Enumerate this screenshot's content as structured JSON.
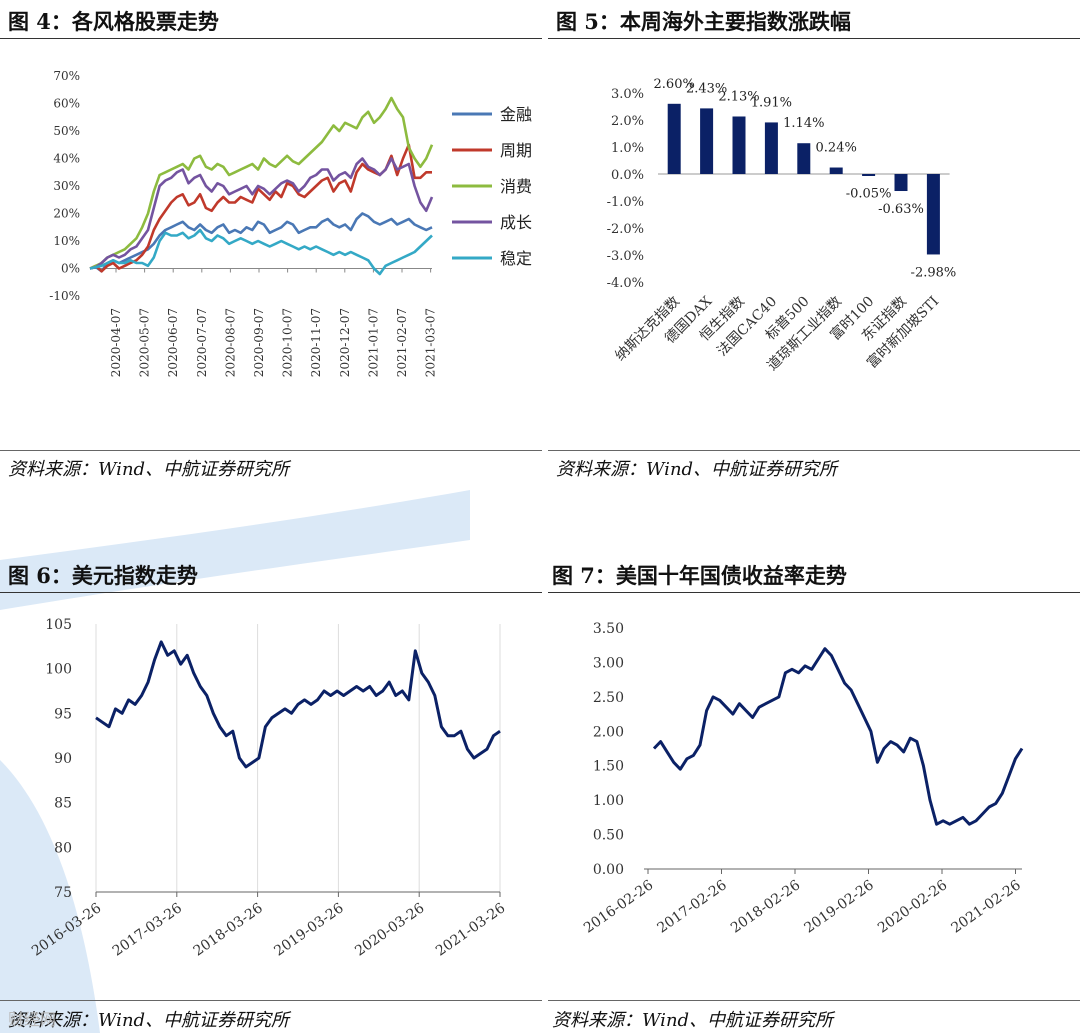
{
  "figures": {
    "fig4": {
      "title": "图 4：各风格股票走势",
      "source": "资料来源：Wind、中航证券研究所"
    },
    "fig5": {
      "title": "图 5：本周海外主要指数涨跌幅",
      "source": "资料来源：Wind、中航证券研究所"
    },
    "fig6": {
      "title": "图 6：美元指数走势",
      "source": "资料来源：Wind、中航证券研究所"
    },
    "fig7": {
      "title": "图 7：美国十年国债收益率走势",
      "source": "资料来源：Wind、中航证券研究所"
    }
  },
  "watermark": "财经网",
  "colors": {
    "navy": "#0b2166",
    "finance": "#4a78b5",
    "cycle": "#c0392b",
    "consumer": "#8dbb3f",
    "growth": "#7454a0",
    "stable": "#34a9c6",
    "swoosh": "#dbe9f7"
  },
  "chart_data": [
    {
      "id": "fig4",
      "type": "line",
      "title": "各风格股票走势",
      "x_ticks": [
        "2020-04-07",
        "2020-05-07",
        "2020-06-07",
        "2020-07-07",
        "2020-08-07",
        "2020-09-07",
        "2020-10-07",
        "2020-11-07",
        "2020-12-07",
        "2021-01-07",
        "2021-02-07",
        "2021-03-07"
      ],
      "y_ticks": [
        "70%",
        "60%",
        "50%",
        "40%",
        "30%",
        "20%",
        "10%",
        "0%",
        "-10%"
      ],
      "ylim": [
        -10,
        70
      ],
      "series": [
        {
          "name": "金融",
          "color_key": "finance",
          "values": [
            0,
            0.5,
            -1,
            2,
            3,
            2,
            3,
            4,
            5,
            6,
            7,
            9,
            12,
            14,
            15,
            16,
            17,
            15,
            14,
            16,
            14,
            13,
            15,
            16,
            13,
            14,
            13,
            15,
            14,
            17,
            16,
            13,
            14,
            15,
            17,
            16,
            13,
            14,
            15,
            15,
            17,
            18,
            16,
            15,
            16,
            14,
            18,
            20,
            19,
            17,
            16,
            17,
            18,
            16,
            17,
            18,
            16,
            15,
            14,
            15
          ]
        },
        {
          "name": "周期",
          "color_key": "cycle",
          "values": [
            0,
            1,
            -1,
            1,
            2,
            0,
            1,
            2,
            3,
            5,
            8,
            14,
            18,
            21,
            24,
            26,
            27,
            23,
            24,
            27,
            22,
            21,
            24,
            26,
            24,
            24,
            26,
            25,
            24,
            29,
            27,
            25,
            28,
            26,
            31,
            30,
            27,
            26,
            28,
            30,
            32,
            33,
            28,
            31,
            32,
            28,
            35,
            38,
            36,
            35,
            34,
            36,
            41,
            34,
            40,
            45,
            33,
            33,
            35,
            35
          ]
        },
        {
          "name": "消费",
          "color_key": "consumer",
          "values": [
            0,
            1,
            2,
            4,
            5,
            6,
            7,
            9,
            11,
            15,
            20,
            28,
            34,
            35,
            36,
            37,
            38,
            36,
            40,
            41,
            37,
            36,
            38,
            37,
            34,
            35,
            36,
            37,
            38,
            36,
            40,
            38,
            37,
            39,
            41,
            39,
            38,
            40,
            42,
            44,
            46,
            49,
            52,
            50,
            53,
            52,
            51,
            55,
            57,
            53,
            55,
            58,
            62,
            58,
            55,
            44,
            40,
            37,
            40,
            45
          ]
        },
        {
          "name": "成长",
          "color_key": "growth",
          "values": [
            0,
            0.5,
            2,
            4,
            5,
            4,
            5,
            7,
            8,
            11,
            14,
            22,
            30,
            32,
            33,
            35,
            36,
            31,
            33,
            34,
            30,
            28,
            31,
            30,
            27,
            28,
            29,
            30,
            27,
            30,
            29,
            27,
            29,
            31,
            32,
            31,
            28,
            30,
            33,
            34,
            36,
            36,
            32,
            34,
            35,
            33,
            38,
            40,
            37,
            36,
            34,
            36,
            40,
            36,
            37,
            38,
            30,
            24,
            21,
            26
          ]
        },
        {
          "name": "稳定",
          "color_key": "stable",
          "values": [
            0,
            0.5,
            1,
            2,
            3,
            2,
            2,
            3,
            2,
            2,
            1,
            4,
            10,
            13,
            12,
            12,
            13,
            11,
            12,
            14,
            11,
            10,
            12,
            11,
            9,
            10,
            11,
            10,
            9,
            10,
            9,
            8,
            9,
            10,
            9,
            8,
            7,
            8,
            7,
            8,
            7,
            6,
            5,
            6,
            5,
            6,
            5,
            4,
            3,
            0,
            -2,
            1,
            2,
            3,
            4,
            5,
            6,
            8,
            10,
            12
          ]
        }
      ]
    },
    {
      "id": "fig5",
      "type": "bar",
      "title": "本周海外主要指数涨跌幅",
      "categories": [
        "纳斯达克指数",
        "德国DAX",
        "恒生指数",
        "法国CAC40",
        "标普500",
        "道琼斯工业指数",
        "富时100",
        "东证指数",
        "富时新加坡STI"
      ],
      "values": [
        2.6,
        2.43,
        2.13,
        1.91,
        1.14,
        0.24,
        -0.05,
        -0.63,
        -2.98
      ],
      "data_labels": [
        "2.60%",
        "2.43%",
        "2.13%",
        "1.91%",
        "1.14%",
        "0.24%",
        "-0.05%",
        "-0.63%",
        "-2.98%"
      ],
      "y_ticks": [
        "3.0%",
        "2.0%",
        "1.0%",
        "0.0%",
        "-1.0%",
        "-2.0%",
        "-3.0%",
        "-4.0%"
      ],
      "ylim": [
        -4.0,
        3.0
      ]
    },
    {
      "id": "fig6",
      "type": "line",
      "title": "美元指数走势",
      "x_ticks": [
        "2016-03-26",
        "2017-03-26",
        "2018-03-26",
        "2019-03-26",
        "2020-03-26",
        "2021-03-26"
      ],
      "y_ticks": [
        "105",
        "100",
        "95",
        "90",
        "85",
        "80",
        "75"
      ],
      "ylim": [
        75,
        105
      ],
      "series": [
        {
          "name": "美元指数",
          "color_key": "navy",
          "values": [
            94.5,
            94.0,
            93.5,
            95.5,
            95.0,
            96.5,
            96.0,
            97.0,
            98.5,
            101.0,
            103.0,
            101.5,
            102.0,
            100.5,
            101.5,
            99.5,
            98.0,
            97.0,
            95.0,
            93.5,
            92.5,
            93.0,
            90.0,
            89.0,
            89.5,
            90.0,
            93.5,
            94.5,
            95.0,
            95.5,
            95.0,
            96.0,
            96.5,
            96.0,
            96.5,
            97.5,
            97.0,
            97.5,
            97.0,
            97.5,
            98.0,
            97.5,
            98.0,
            97.0,
            97.5,
            98.5,
            97.0,
            97.5,
            96.5,
            102.0,
            99.5,
            98.5,
            97.0,
            93.5,
            92.5,
            92.5,
            93.0,
            91.0,
            90.0,
            90.5,
            91.0,
            92.5,
            93.0
          ]
        }
      ]
    },
    {
      "id": "fig7",
      "type": "line",
      "title": "美国十年国债收益率走势",
      "x_ticks": [
        "2016-02-26",
        "2017-02-26",
        "2018-02-26",
        "2019-02-26",
        "2020-02-26",
        "2021-02-26"
      ],
      "y_ticks": [
        "3.50",
        "3.00",
        "2.50",
        "2.00",
        "1.50",
        "1.00",
        "0.50",
        "0.00"
      ],
      "ylim": [
        0,
        3.5
      ],
      "series": [
        {
          "name": "美国十年国债收益率",
          "color_key": "navy",
          "values": [
            1.75,
            1.85,
            1.7,
            1.55,
            1.45,
            1.6,
            1.65,
            1.8,
            2.3,
            2.5,
            2.45,
            2.35,
            2.25,
            2.4,
            2.3,
            2.2,
            2.35,
            2.4,
            2.45,
            2.5,
            2.85,
            2.9,
            2.85,
            2.95,
            2.9,
            3.05,
            3.2,
            3.1,
            2.9,
            2.7,
            2.6,
            2.4,
            2.2,
            2.0,
            1.55,
            1.75,
            1.85,
            1.8,
            1.7,
            1.9,
            1.85,
            1.5,
            1.0,
            0.65,
            0.7,
            0.65,
            0.7,
            0.75,
            0.65,
            0.7,
            0.8,
            0.9,
            0.95,
            1.1,
            1.35,
            1.6,
            1.75
          ]
        }
      ]
    }
  ]
}
